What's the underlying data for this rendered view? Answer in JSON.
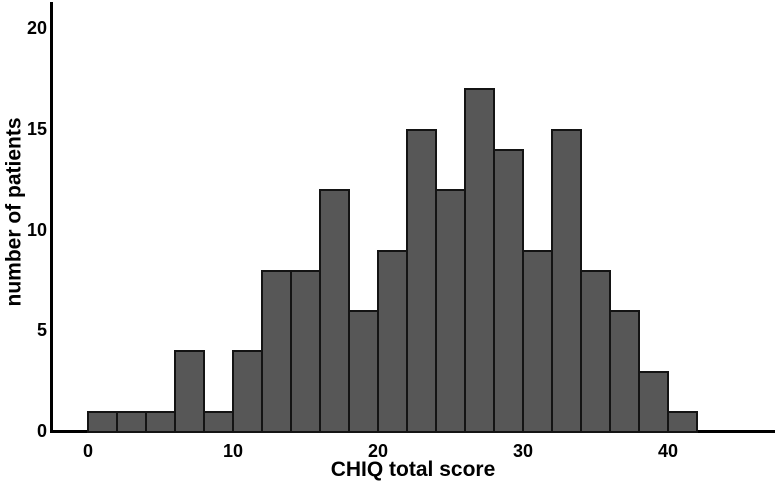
{
  "chart_data": {
    "type": "bar",
    "subtype": "histogram",
    "title": "",
    "xlabel": "CHIQ total score",
    "ylabel": "number of patients",
    "bin_width": 2,
    "bin_starts": [
      0,
      2,
      4,
      6,
      8,
      10,
      12,
      14,
      16,
      18,
      20,
      22,
      24,
      26,
      28,
      30,
      32,
      34,
      36,
      38,
      40
    ],
    "values": [
      1,
      1,
      1,
      4,
      1,
      4,
      8,
      8,
      12,
      6,
      9,
      15,
      12,
      17,
      14,
      9,
      15,
      8,
      6,
      3,
      1
    ],
    "x_ticks": [
      0,
      10,
      20,
      30,
      40
    ],
    "y_ticks": [
      0,
      5,
      10,
      15,
      20
    ],
    "xlim": [
      -2.5,
      47.4
    ],
    "ylim": [
      0,
      21.3
    ],
    "grid": false,
    "legend": "none",
    "colors": {
      "bar_fill": "#575757",
      "bar_border": "#141414",
      "axis": "#000000",
      "text": "#000000",
      "background": "#ffffff"
    }
  }
}
